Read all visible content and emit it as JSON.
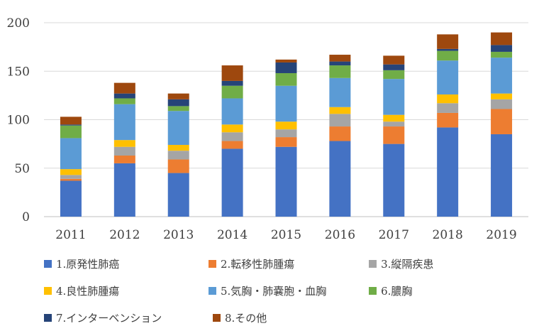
{
  "chart_data": {
    "type": "bar",
    "stacked": true,
    "categories": [
      "2011",
      "2012",
      "2013",
      "2014",
      "2015",
      "2016",
      "2017",
      "2018",
      "2019"
    ],
    "ylim": [
      0,
      200
    ],
    "yticks": [
      0,
      50,
      100,
      150,
      200
    ],
    "grid": true,
    "legend_position": "bottom",
    "series": [
      {
        "name": "1.原発性肺癌",
        "color": "#4472C4",
        "values": [
          37,
          55,
          45,
          70,
          72,
          78,
          75,
          92,
          85
        ]
      },
      {
        "name": "2.転移性肺腫瘍",
        "color": "#ED7D31",
        "values": [
          2,
          8,
          14,
          8,
          10,
          15,
          18,
          15,
          26
        ]
      },
      {
        "name": "3.縦隔疾患",
        "color": "#A5A5A5",
        "values": [
          4,
          9,
          9,
          9,
          8,
          13,
          5,
          10,
          10
        ]
      },
      {
        "name": "4.良性肺腫瘍",
        "color": "#FFC000",
        "values": [
          6,
          7,
          6,
          8,
          8,
          7,
          7,
          9,
          6
        ]
      },
      {
        "name": "5.気胸・肺嚢胞・血胸",
        "color": "#5B9BD5",
        "values": [
          32,
          37,
          35,
          27,
          37,
          30,
          37,
          35,
          37
        ]
      },
      {
        "name": "6.膿胸",
        "color": "#70AD47",
        "values": [
          13,
          6,
          5,
          13,
          13,
          13,
          9,
          10,
          6
        ]
      },
      {
        "name": "7.インターベンション",
        "color": "#264478",
        "values": [
          1,
          5,
          7,
          5,
          11,
          4,
          6,
          2,
          7
        ]
      },
      {
        "name": "8.その他",
        "color": "#9E480E",
        "values": [
          8,
          11,
          6,
          16,
          3,
          7,
          9,
          15,
          13
        ]
      }
    ]
  }
}
